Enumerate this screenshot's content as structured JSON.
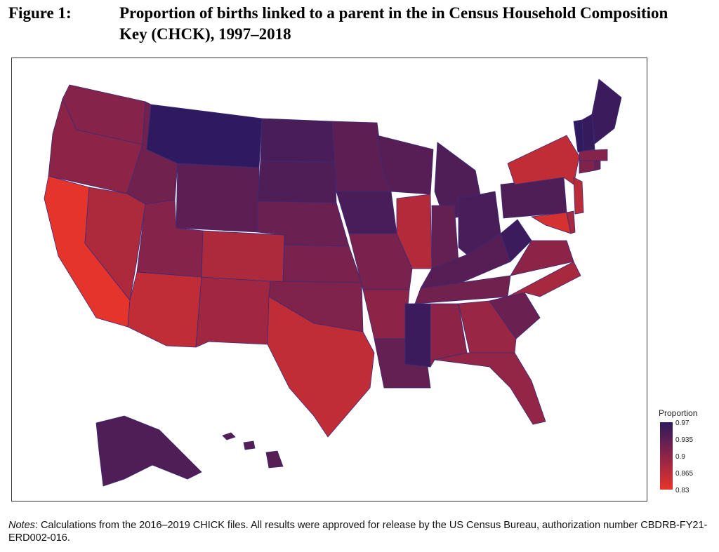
{
  "figure": {
    "label": "Figure 1:",
    "title": "Proportion of births linked to a parent in the in Census Household Composition Key (CHCK), 1997–2018"
  },
  "legend": {
    "title": "Proportion",
    "ticks": [
      "0.97",
      "0.935",
      "0.9",
      "0.865",
      "0.83"
    ],
    "low_color": "#e8342a",
    "mid_color": "#8c2448",
    "high_color": "#2e1a5e"
  },
  "notes": {
    "label": "Notes",
    "text": ": Calculations from the 2016–2019 CHICK files. All results were approved for release by the US Census Bureau, authorization number CBDRB-FY21-ERD002-016."
  },
  "chart_data": {
    "type": "choropleth",
    "variable": "Proportion",
    "scale_min": 0.83,
    "scale_max": 0.97,
    "states": [
      {
        "state": "WA",
        "value": 0.905
      },
      {
        "state": "OR",
        "value": 0.9
      },
      {
        "state": "CA",
        "value": 0.832
      },
      {
        "state": "NV",
        "value": 0.875
      },
      {
        "state": "ID",
        "value": 0.92
      },
      {
        "state": "MT",
        "value": 0.97
      },
      {
        "state": "WY",
        "value": 0.935
      },
      {
        "state": "UT",
        "value": 0.905
      },
      {
        "state": "AZ",
        "value": 0.86
      },
      {
        "state": "CO",
        "value": 0.875
      },
      {
        "state": "NM",
        "value": 0.885
      },
      {
        "state": "ND",
        "value": 0.95
      },
      {
        "state": "SD",
        "value": 0.945
      },
      {
        "state": "NE",
        "value": 0.925
      },
      {
        "state": "KS",
        "value": 0.915
      },
      {
        "state": "OK",
        "value": 0.91
      },
      {
        "state": "TX",
        "value": 0.86
      },
      {
        "state": "MN",
        "value": 0.935
      },
      {
        "state": "IA",
        "value": 0.95
      },
      {
        "state": "MO",
        "value": 0.915
      },
      {
        "state": "AR",
        "value": 0.9
      },
      {
        "state": "LA",
        "value": 0.93
      },
      {
        "state": "WI",
        "value": 0.94
      },
      {
        "state": "IL",
        "value": 0.87
      },
      {
        "state": "MI",
        "value": 0.945
      },
      {
        "state": "IN",
        "value": 0.93
      },
      {
        "state": "OH",
        "value": 0.95
      },
      {
        "state": "KY",
        "value": 0.94
      },
      {
        "state": "TN",
        "value": 0.92
      },
      {
        "state": "MS",
        "value": 0.96
      },
      {
        "state": "AL",
        "value": 0.9
      },
      {
        "state": "GA",
        "value": 0.89
      },
      {
        "state": "FL",
        "value": 0.895
      },
      {
        "state": "SC",
        "value": 0.925
      },
      {
        "state": "NC",
        "value": 0.88
      },
      {
        "state": "VA",
        "value": 0.9
      },
      {
        "state": "WV",
        "value": 0.96
      },
      {
        "state": "PA",
        "value": 0.945
      },
      {
        "state": "NY",
        "value": 0.86
      },
      {
        "state": "MD",
        "value": 0.845
      },
      {
        "state": "DE",
        "value": 0.88
      },
      {
        "state": "NJ",
        "value": 0.865
      },
      {
        "state": "CT",
        "value": 0.91
      },
      {
        "state": "RI",
        "value": 0.925
      },
      {
        "state": "MA",
        "value": 0.905
      },
      {
        "state": "VT",
        "value": 0.97
      },
      {
        "state": "NH",
        "value": 0.965
      },
      {
        "state": "ME",
        "value": 0.96
      },
      {
        "state": "AK",
        "value": 0.945
      },
      {
        "state": "HI",
        "value": 0.94
      }
    ]
  }
}
